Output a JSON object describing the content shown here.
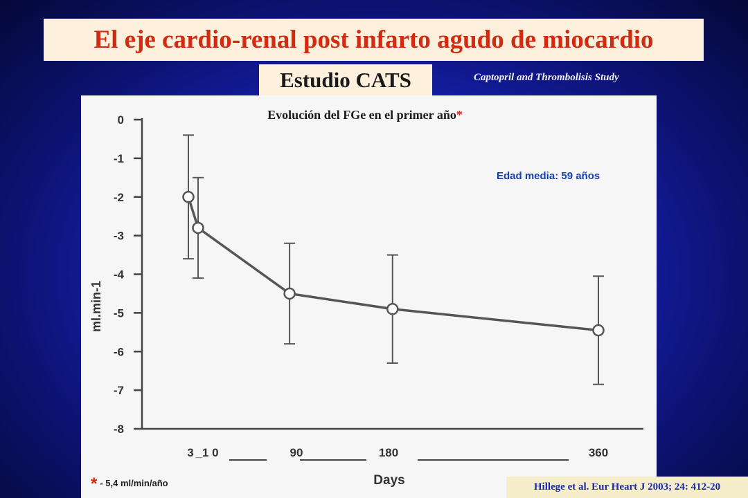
{
  "slide": {
    "title": "El eje cardio-renal post infarto agudo de miocardio",
    "study_label": "Estudio CATS",
    "study_subtitle": "Captopril and Thrombolisis Study",
    "chart_title": "Evolución del FGe en el primer año",
    "chart_title_star": "*",
    "age_note": "Edad media: 59 años",
    "footnote_star": "*",
    "footnote_text": "- 5,4 ml/min/año",
    "reference": "Hillege et al. Eur Heart J 2003; 24: 412-20"
  },
  "colors": {
    "title_text": "#d32a12",
    "box_background": "#fdf0dc",
    "series_line": "#555555",
    "age_note": "#1a3fb0",
    "reference_text": "#1a2ab0"
  },
  "chart_data": {
    "type": "line",
    "title": "Evolución del FGe en el primer año",
    "xlabel": "Days",
    "ylabel": "ml.min-1",
    "ylim": [
      -8,
      0
    ],
    "yticks": [
      "0",
      "-1",
      "-2",
      "-3",
      "-4",
      "-5",
      "-6",
      "-7",
      "-8"
    ],
    "xticks": [
      "3",
      "_1 0",
      "90",
      "180",
      "360"
    ],
    "grid": false,
    "series": [
      {
        "points": [
          {
            "x": 3,
            "y": -2.0,
            "err_low": -3.6,
            "err_high": -0.4
          },
          {
            "x": 10,
            "y": -2.8,
            "err_low": -4.1,
            "err_high": -1.5
          },
          {
            "x": 90,
            "y": -4.5,
            "err_low": -5.8,
            "err_high": -3.2
          },
          {
            "x": 180,
            "y": -4.9,
            "err_low": -6.3,
            "err_high": -3.5
          },
          {
            "x": 360,
            "y": -5.45,
            "err_low": -6.85,
            "err_high": -4.05
          }
        ]
      }
    ]
  }
}
